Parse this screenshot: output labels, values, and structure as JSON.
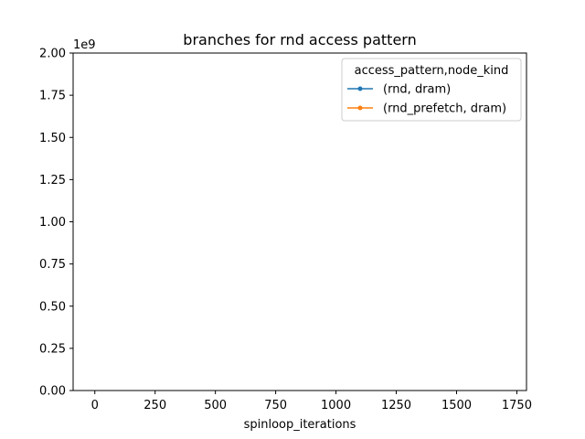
{
  "chart_data": {
    "type": "line",
    "title": "branches for rnd access pattern",
    "xlabel": "spinloop_iterations",
    "ylabel": "",
    "y_offset_label": "1e9",
    "xlim": [
      -90,
      1790
    ],
    "ylim": [
      0,
      2.0
    ],
    "x_ticks": [
      0,
      250,
      500,
      750,
      1000,
      1250,
      1500,
      1750
    ],
    "y_ticks": [
      0.0,
      0.25,
      0.5,
      0.75,
      1.0,
      1.25,
      1.5,
      1.75,
      2.0
    ],
    "y_tick_labels": [
      "0.00",
      "0.25",
      "0.50",
      "0.75",
      "1.00",
      "1.25",
      "1.50",
      "1.75",
      "2.00"
    ],
    "grid": false,
    "legend": {
      "title": "access_pattern,node_kind",
      "placement": "top-right"
    },
    "series": [
      {
        "name": "(rnd, dram)",
        "color": "#1f77b4",
        "marker": "point",
        "x": [],
        "y": []
      },
      {
        "name": "(rnd_prefetch, dram)",
        "color": "#ff7f0e",
        "marker": "point",
        "x": [],
        "y": []
      }
    ]
  }
}
